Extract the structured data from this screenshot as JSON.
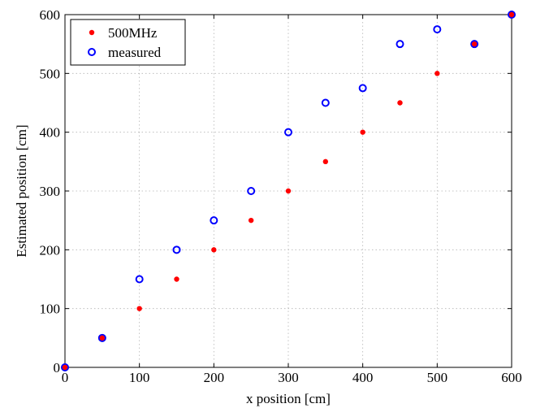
{
  "chart_data": {
    "type": "scatter",
    "xlabel": "x position [cm]",
    "ylabel": "Estimated position [cm]",
    "xlim": [
      0,
      600
    ],
    "ylim": [
      0,
      600
    ],
    "xticks": [
      0,
      100,
      200,
      300,
      400,
      500,
      600
    ],
    "yticks": [
      0,
      100,
      200,
      300,
      400,
      500,
      600
    ],
    "grid": true,
    "legend_position": "top-left",
    "series": [
      {
        "name": "500MHz",
        "marker": "filled-dot",
        "color": "#ff0000",
        "points": [
          [
            0,
            0
          ],
          [
            50,
            50
          ],
          [
            100,
            100
          ],
          [
            150,
            150
          ],
          [
            200,
            200
          ],
          [
            250,
            250
          ],
          [
            300,
            300
          ],
          [
            350,
            350
          ],
          [
            400,
            400
          ],
          [
            450,
            450
          ],
          [
            500,
            500
          ],
          [
            550,
            550
          ],
          [
            600,
            600
          ]
        ]
      },
      {
        "name": "measured",
        "marker": "open-circle",
        "color": "#0000ff",
        "points": [
          [
            0,
            0
          ],
          [
            50,
            50
          ],
          [
            100,
            150
          ],
          [
            150,
            200
          ],
          [
            200,
            250
          ],
          [
            250,
            300
          ],
          [
            300,
            400
          ],
          [
            350,
            450
          ],
          [
            400,
            475
          ],
          [
            450,
            550
          ],
          [
            500,
            575
          ],
          [
            550,
            550
          ],
          [
            600,
            600
          ]
        ]
      }
    ]
  }
}
